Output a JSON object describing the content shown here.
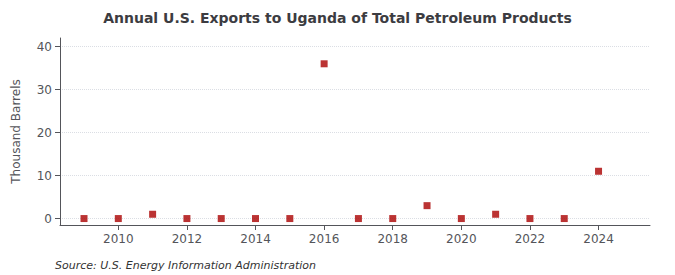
{
  "chart_data": {
    "type": "scatter",
    "title": "Annual U.S. Exports to Uganda of Total Petroleum Products",
    "ylabel": "Thousand Barrels",
    "annotations": [
      "Source: U.S. Energy Information Administration"
    ],
    "x": [
      2009,
      2010,
      2011,
      2012,
      2013,
      2014,
      2015,
      2016,
      2017,
      2018,
      2019,
      2020,
      2021,
      2022,
      2023,
      2024
    ],
    "values": [
      0,
      0,
      1,
      0,
      0,
      0,
      0,
      36,
      0,
      0,
      3,
      0,
      1,
      0,
      0,
      11
    ],
    "color": "#aa0000",
    "marker": "square",
    "xlim": [
      2008.3,
      2025.5
    ],
    "xticks": [
      2010,
      2012,
      2014,
      2016,
      2018,
      2020,
      2022,
      2024
    ],
    "ylim": [
      -1.5,
      42
    ],
    "yticks": [
      0,
      10,
      20,
      30,
      40
    ],
    "grid": true
  }
}
